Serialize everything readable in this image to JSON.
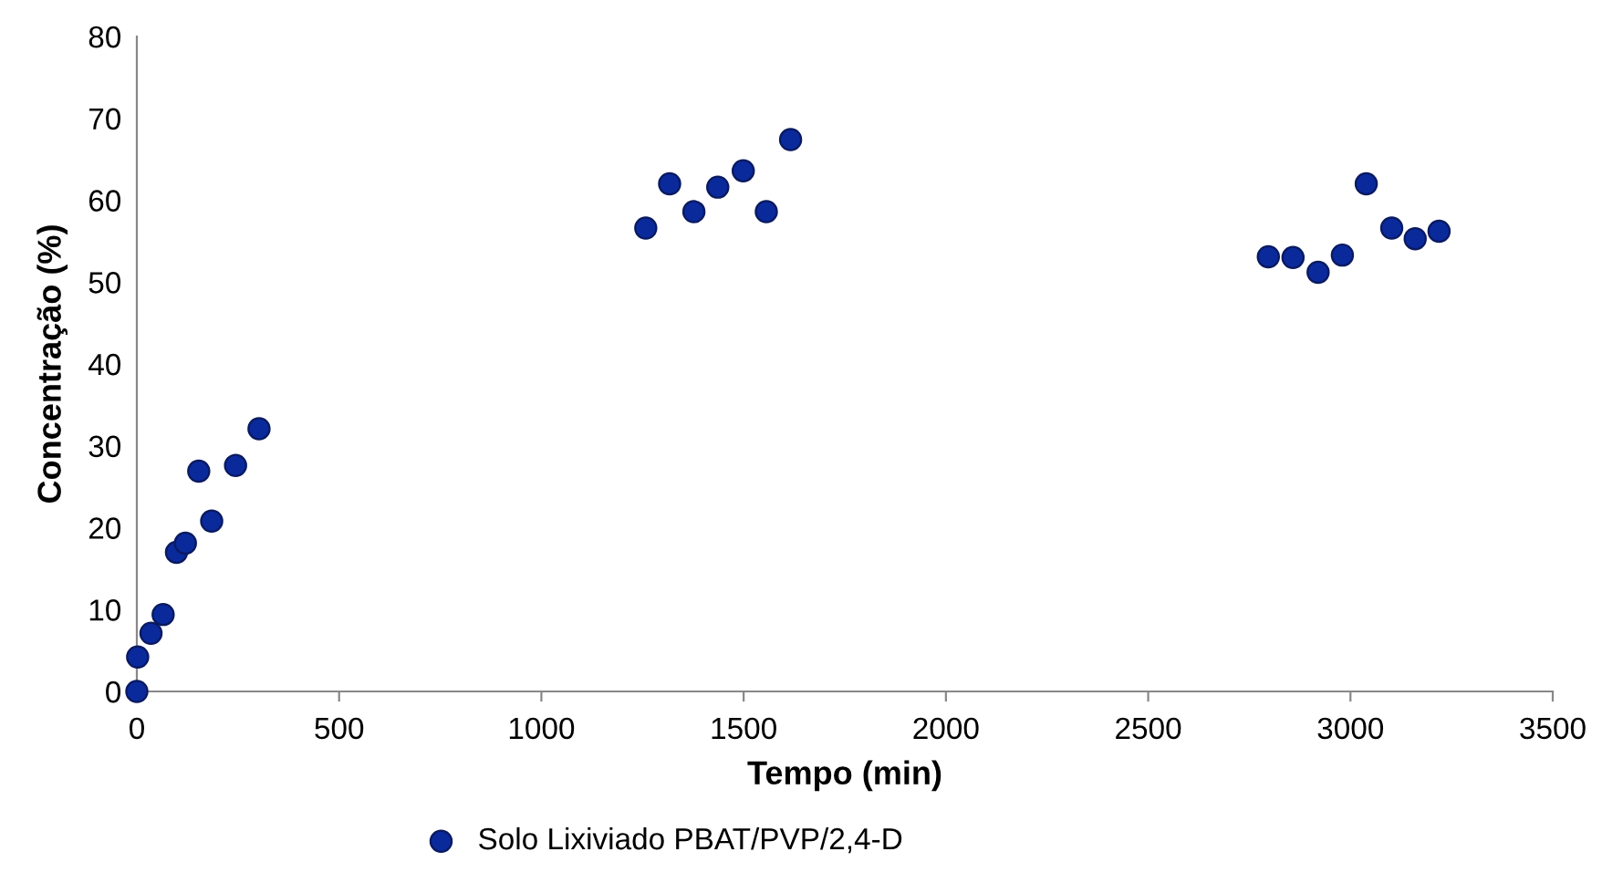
{
  "chart_data": {
    "type": "scatter",
    "xlabel": "Tempo (min)",
    "ylabel": "Concentração (%)",
    "xlim": [
      0,
      3500
    ],
    "xticks": [
      0,
      500,
      1000,
      1500,
      2000,
      2500,
      3000,
      3500
    ],
    "ylim": [
      0,
      80
    ],
    "yticks": [
      0,
      10,
      20,
      30,
      40,
      50,
      60,
      70,
      80
    ],
    "grid": false,
    "legend": "bottom",
    "marker": "circle",
    "series": [
      {
        "name": "Solo Lixiviado PBAT/PVP/2,4-D",
        "color": "#0a2a9c",
        "x": [
          0,
          2,
          8,
          20,
          35,
          65,
          98,
          120,
          153,
          185,
          244,
          302,
          1258,
          1317,
          1377,
          1436,
          1499,
          1556,
          1616,
          2797,
          2858,
          2920,
          2980,
          3039,
          3102,
          3160,
          3219
        ],
        "values": [
          0,
          4.2,
          null,
          null,
          7.1,
          9.4,
          17.0,
          18.1,
          26.9,
          20.8,
          27.6,
          32.1,
          56.6,
          62.0,
          58.6,
          61.6,
          63.6,
          58.6,
          67.4,
          53.1,
          53.0,
          51.2,
          53.3,
          62.0,
          56.6,
          55.3,
          56.2
        ]
      }
    ]
  }
}
